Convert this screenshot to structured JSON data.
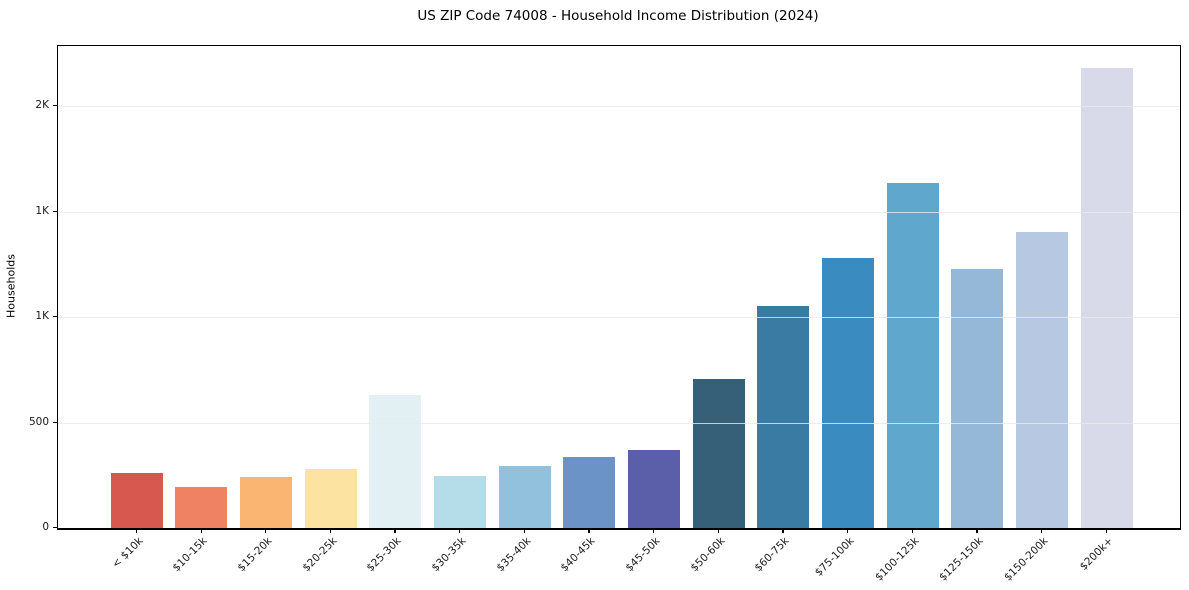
{
  "title": "US ZIP Code 74008 - Household Income Distribution (2024)",
  "chart_data": {
    "type": "bar",
    "title": "US ZIP Code 74008 - Household Income Distribution (2024)",
    "xlabel": "",
    "ylabel": "Households",
    "categories": [
      "< $10k",
      "$10-15k",
      "$15-20k",
      "$20-25k",
      "$25-30k",
      "$30-35k",
      "$35-40k",
      "$40-45k",
      "$45-50k",
      "$50-60k",
      "$60-75k",
      "$75-100k",
      "$100-125k",
      "$125-150k",
      "$150-200k",
      "$200k+"
    ],
    "values": [
      260,
      195,
      242,
      278,
      630,
      248,
      294,
      335,
      371,
      708,
      1052,
      1282,
      1635,
      1230,
      1402,
      2180
    ],
    "bar_colors": [
      "#d6584f",
      "#f08264",
      "#f9b571",
      "#fde3a1",
      "#e3f0f3",
      "#b5dde9",
      "#91c1dd",
      "#6c93c7",
      "#5b5ea8",
      "#356077",
      "#3a7ba3",
      "#398bc0",
      "#5fa7cc",
      "#96b8d8",
      "#b7c8e2",
      "#d8dae9"
    ],
    "ylim": [
      0,
      2285
    ],
    "yticks": [
      {
        "value": 0,
        "label": "0"
      },
      {
        "value": 500,
        "label": "500"
      },
      {
        "value": 1000,
        "label": "1K"
      },
      {
        "value": 1500,
        "label": "1K"
      },
      {
        "value": 2000,
        "label": "2K"
      }
    ],
    "grid": "horizontal gridlines at y-ticks, drawn over bars",
    "legend": "none",
    "x_tick_rotation": 45
  },
  "colors": {
    "background": "#ffffff",
    "axis_spine": "#000000",
    "gridline": "#e9e9e9",
    "tick_text": "#1a1a1a",
    "title_text": "#000000"
  }
}
